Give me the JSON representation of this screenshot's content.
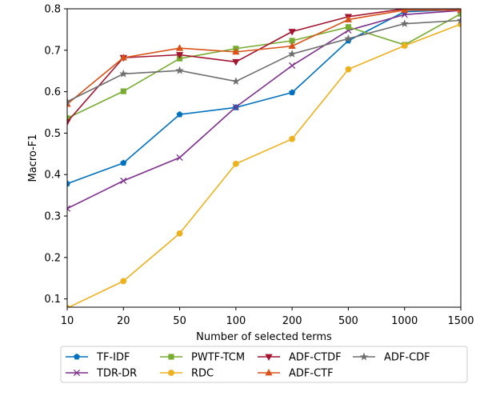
{
  "chart_data": {
    "type": "line",
    "title": "",
    "xlabel": "Number of selected terms",
    "ylabel": "Macro-F1",
    "categories": [
      "10",
      "20",
      "50",
      "100",
      "200",
      "500",
      "1000",
      "1500"
    ],
    "ylim": [
      0.08,
      0.8
    ],
    "yticks": [
      "0.1",
      "0.2",
      "0.3",
      "0.4",
      "0.5",
      "0.6",
      "0.7",
      "0.8"
    ],
    "grid": false,
    "legend_position": "bottom",
    "series": [
      {
        "name": "TF-IDF",
        "color": "#0072BD",
        "marker": "pentagon",
        "values": [
          0.378,
          0.428,
          0.545,
          0.562,
          0.598,
          0.723,
          0.793,
          0.798
        ]
      },
      {
        "name": "TDR-DR",
        "color": "#7E2F8E",
        "marker": "x",
        "values": [
          0.318,
          0.385,
          0.441,
          0.563,
          0.663,
          0.748,
          0.786,
          0.796
        ]
      },
      {
        "name": "PWTF-TCM",
        "color": "#77AC30",
        "marker": "square",
        "values": [
          0.536,
          0.601,
          0.68,
          0.704,
          0.723,
          0.756,
          0.713,
          0.788
        ]
      },
      {
        "name": "RDC",
        "color": "#EDB120",
        "marker": "circle",
        "values": [
          0.078,
          0.143,
          0.258,
          0.426,
          0.486,
          0.654,
          0.711,
          0.763
        ]
      },
      {
        "name": "ADF-CTDF",
        "color": "#A2142F",
        "marker": "triangle-down",
        "values": [
          0.527,
          0.682,
          0.689,
          0.672,
          0.745,
          0.781,
          0.8,
          0.8
        ]
      },
      {
        "name": "ADF-CTF",
        "color": "#D95319",
        "marker": "triangle-up",
        "values": [
          0.57,
          0.682,
          0.705,
          0.696,
          0.71,
          0.774,
          0.797,
          0.797
        ]
      },
      {
        "name": "ADF-CDF",
        "color": "#6E6E6E",
        "marker": "star",
        "values": [
          0.576,
          0.643,
          0.651,
          0.625,
          0.691,
          0.728,
          0.764,
          0.772
        ]
      }
    ]
  }
}
